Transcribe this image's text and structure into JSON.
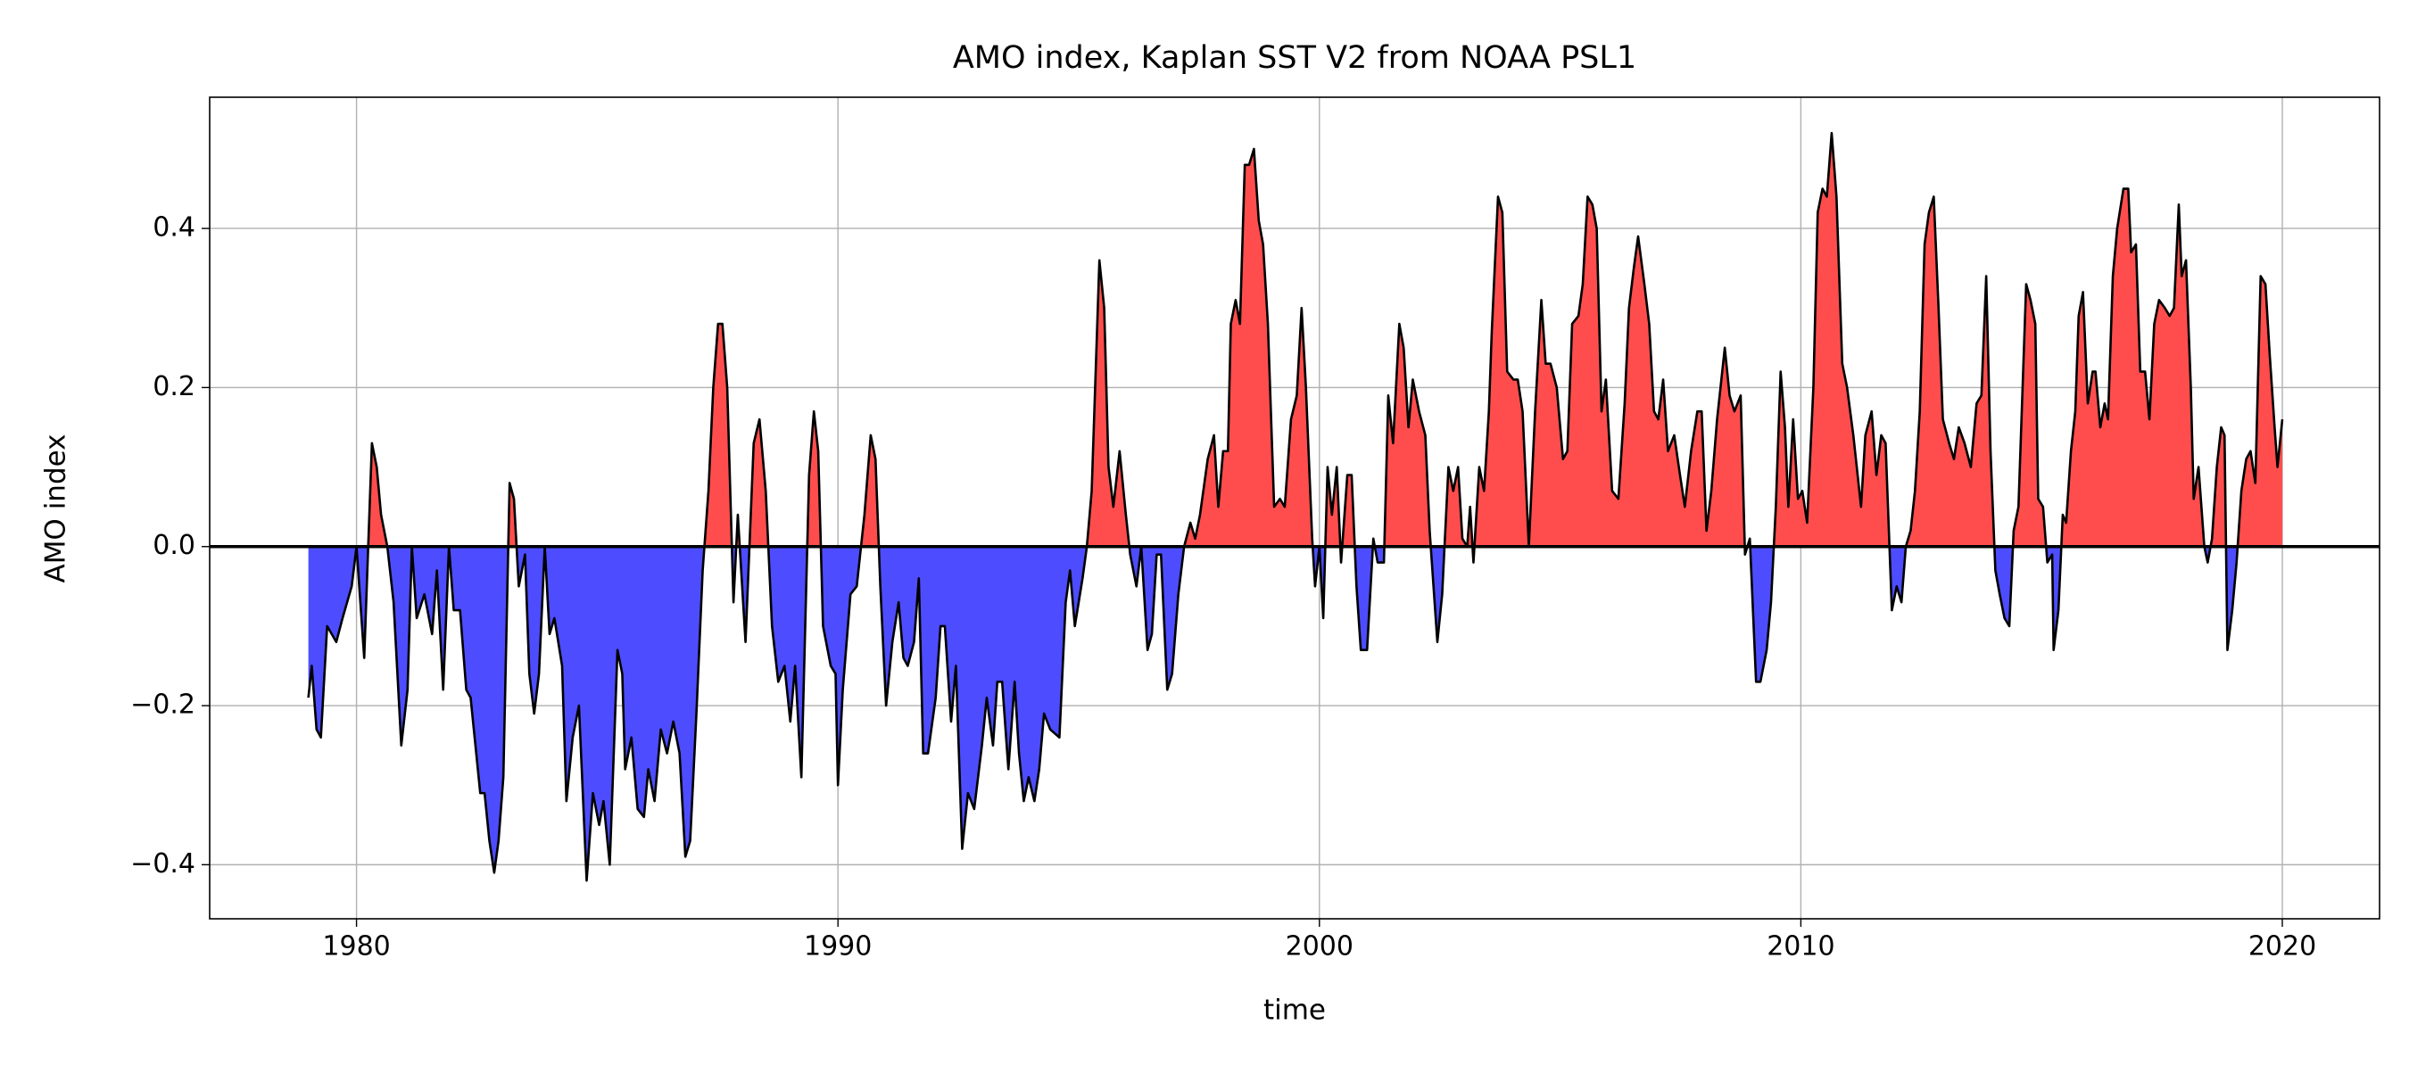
{
  "chart_data": {
    "type": "area",
    "title": "AMO index, Kaplan SST V2 from NOAA PSL1",
    "x_label": "time",
    "y_label": "AMO index",
    "color": "#000000",
    "fill_above_color": "#ff4d4d",
    "fill_below_color": "#4d4dff",
    "baseline": 0,
    "baseline_color": "#000000",
    "grid": true,
    "xlim": [
      1976.95,
      2022.02
    ],
    "ylim": [
      -0.468,
      0.565
    ],
    "xticks": [
      1980,
      1990,
      2000,
      2010,
      2020
    ],
    "yticks": [
      {
        "value": -0.4,
        "label": "−0.4"
      },
      {
        "value": -0.2,
        "label": "−0.2"
      },
      {
        "value": 0,
        "label": "0.0"
      },
      0.2,
      0.4
    ],
    "x": [
      1979.0,
      1979.07,
      1979.17,
      1979.26,
      1979.39,
      1979.58,
      1979.71,
      1979.9,
      1980.0,
      1980.16,
      1980.32,
      1980.42,
      1980.51,
      1980.64,
      1980.77,
      1980.93,
      1981.06,
      1981.15,
      1981.25,
      1981.41,
      1981.57,
      1981.67,
      1981.8,
      1981.92,
      1982.02,
      1982.15,
      1982.28,
      1982.37,
      1982.57,
      1982.66,
      1982.76,
      1982.86,
      1982.95,
      1983.05,
      1983.18,
      1983.27,
      1983.37,
      1983.5,
      1983.59,
      1983.69,
      1983.79,
      1983.91,
      1984.01,
      1984.11,
      1984.27,
      1984.36,
      1984.49,
      1984.62,
      1984.78,
      1984.91,
      1985.04,
      1985.13,
      1985.26,
      1985.42,
      1985.52,
      1985.58,
      1985.71,
      1985.84,
      1985.97,
      1986.06,
      1986.19,
      1986.32,
      1986.45,
      1986.58,
      1986.71,
      1986.83,
      1986.93,
      1987.06,
      1987.19,
      1987.31,
      1987.41,
      1987.51,
      1987.6,
      1987.7,
      1987.83,
      1987.92,
      1988.08,
      1988.25,
      1988.37,
      1988.5,
      1988.63,
      1988.76,
      1988.89,
      1989.01,
      1989.11,
      1989.24,
      1989.4,
      1989.5,
      1989.59,
      1989.69,
      1989.85,
      1989.95,
      1990.0,
      1990.1,
      1990.26,
      1990.39,
      1990.55,
      1990.68,
      1990.78,
      1990.88,
      1991.0,
      1991.13,
      1991.26,
      1991.36,
      1991.45,
      1991.58,
      1991.68,
      1991.77,
      1991.87,
      1992.03,
      1992.13,
      1992.22,
      1992.35,
      1992.45,
      1992.58,
      1992.7,
      1992.83,
      1992.99,
      1993.09,
      1993.22,
      1993.31,
      1993.41,
      1993.54,
      1993.67,
      1993.76,
      1993.86,
      1993.96,
      1994.08,
      1994.18,
      1994.28,
      1994.41,
      1994.6,
      1994.73,
      1994.82,
      1994.92,
      1995.08,
      1995.17,
      1995.27,
      1995.43,
      1995.53,
      1995.62,
      1995.72,
      1995.85,
      1995.98,
      1996.07,
      1996.2,
      1996.3,
      1996.43,
      1996.52,
      1996.62,
      1996.71,
      1996.84,
      1996.94,
      1997.07,
      1997.19,
      1997.32,
      1997.42,
      1997.52,
      1997.68,
      1997.81,
      1997.9,
      1998.0,
      1998.1,
      1998.16,
      1998.26,
      1998.35,
      1998.45,
      1998.54,
      1998.64,
      1998.74,
      1998.83,
      1998.93,
      1999.06,
      1999.18,
      1999.28,
      1999.41,
      1999.53,
      1999.63,
      1999.72,
      1999.85,
      1999.91,
      2000.0,
      2000.08,
      2000.17,
      2000.26,
      2000.36,
      2000.45,
      2000.58,
      2000.67,
      2000.77,
      2000.86,
      2000.99,
      2001.12,
      2001.21,
      2001.34,
      2001.43,
      2001.53,
      2001.66,
      2001.75,
      2001.85,
      2001.94,
      2002.07,
      2002.2,
      2002.29,
      2002.45,
      2002.55,
      2002.68,
      2002.78,
      2002.88,
      2002.97,
      2003.07,
      2003.13,
      2003.2,
      2003.32,
      2003.42,
      2003.52,
      2003.58,
      2003.71,
      2003.8,
      2003.9,
      2004.03,
      2004.12,
      2004.22,
      2004.35,
      2004.48,
      2004.61,
      2004.7,
      2004.8,
      2004.93,
      2005.06,
      2005.15,
      2005.25,
      2005.38,
      2005.47,
      2005.57,
      2005.67,
      2005.76,
      2005.86,
      2005.95,
      2006.08,
      2006.21,
      2006.34,
      2006.43,
      2006.53,
      2006.62,
      2006.75,
      2006.85,
      2006.95,
      2007.04,
      2007.14,
      2007.24,
      2007.37,
      2007.49,
      2007.59,
      2007.72,
      2007.85,
      2007.94,
      2008.04,
      2008.14,
      2008.26,
      2008.42,
      2008.52,
      2008.62,
      2008.75,
      2008.84,
      2008.94,
      2009.07,
      2009.16,
      2009.29,
      2009.38,
      2009.48,
      2009.58,
      2009.67,
      2009.74,
      2009.84,
      2009.94,
      2010.03,
      2010.13,
      2010.26,
      2010.35,
      2010.45,
      2010.54,
      2010.64,
      2010.74,
      2010.86,
      2010.96,
      2011.09,
      2011.25,
      2011.34,
      2011.47,
      2011.57,
      2011.67,
      2011.76,
      2011.89,
      2011.99,
      2012.09,
      2012.18,
      2012.28,
      2012.37,
      2012.47,
      2012.57,
      2012.66,
      2012.76,
      2012.86,
      2012.95,
      2013.08,
      2013.18,
      2013.28,
      2013.4,
      2013.53,
      2013.65,
      2013.75,
      2013.85,
      2013.94,
      2014.04,
      2014.13,
      2014.23,
      2014.33,
      2014.42,
      2014.52,
      2014.68,
      2014.77,
      2014.87,
      2014.93,
      2015.03,
      2015.12,
      2015.22,
      2015.25,
      2015.35,
      2015.44,
      2015.51,
      2015.61,
      2015.7,
      2015.77,
      2015.86,
      2015.96,
      2016.06,
      2016.12,
      2016.22,
      2016.31,
      2016.38,
      2016.48,
      2016.57,
      2016.7,
      2016.8,
      2016.86,
      2016.96,
      2017.05,
      2017.15,
      2017.24,
      2017.34,
      2017.44,
      2017.56,
      2017.66,
      2017.75,
      2017.85,
      2017.91,
      2018.0,
      2018.1,
      2018.16,
      2018.26,
      2018.38,
      2018.45,
      2018.54,
      2018.64,
      2018.73,
      2018.8,
      2018.86,
      2018.96,
      2019.05,
      2019.15,
      2019.25,
      2019.34,
      2019.44,
      2019.55,
      2019.65,
      2019.74,
      2019.84,
      2019.9,
      2020.0
    ],
    "values": [
      -0.19,
      -0.15,
      -0.23,
      -0.24,
      -0.1,
      -0.12,
      -0.09,
      -0.05,
      0,
      -0.14,
      0.13,
      0.1,
      0.04,
      0,
      -0.07,
      -0.25,
      -0.18,
      0,
      -0.09,
      -0.06,
      -0.11,
      -0.03,
      -0.18,
      0,
      -0.08,
      -0.08,
      -0.18,
      -0.19,
      -0.31,
      -0.31,
      -0.37,
      -0.41,
      -0.37,
      -0.29,
      0.08,
      0.06,
      -0.05,
      -0.01,
      -0.16,
      -0.21,
      -0.16,
      0,
      -0.11,
      -0.09,
      -0.15,
      -0.32,
      -0.24,
      -0.2,
      -0.42,
      -0.31,
      -0.35,
      -0.32,
      -0.4,
      -0.13,
      -0.16,
      -0.28,
      -0.24,
      -0.33,
      -0.34,
      -0.28,
      -0.32,
      -0.23,
      -0.26,
      -0.22,
      -0.26,
      -0.39,
      -0.37,
      -0.21,
      -0.03,
      0.07,
      0.2,
      0.28,
      0.28,
      0.2,
      -0.07,
      0.04,
      -0.12,
      0.13,
      0.16,
      0.07,
      -0.1,
      -0.17,
      -0.15,
      -0.22,
      -0.15,
      -0.29,
      0.09,
      0.17,
      0.12,
      -0.1,
      -0.15,
      -0.16,
      -0.3,
      -0.18,
      -0.06,
      -0.05,
      0.04,
      0.14,
      0.11,
      -0.05,
      -0.2,
      -0.12,
      -0.07,
      -0.14,
      -0.15,
      -0.12,
      -0.04,
      -0.26,
      -0.26,
      -0.19,
      -0.1,
      -0.1,
      -0.22,
      -0.15,
      -0.38,
      -0.31,
      -0.33,
      -0.25,
      -0.19,
      -0.25,
      -0.17,
      -0.17,
      -0.28,
      -0.17,
      -0.26,
      -0.32,
      -0.29,
      -0.32,
      -0.28,
      -0.21,
      -0.23,
      -0.24,
      -0.07,
      -0.03,
      -0.1,
      -0.04,
      0,
      0.07,
      0.36,
      0.3,
      0.1,
      0.05,
      0.12,
      0.04,
      -0.01,
      -0.05,
      0,
      -0.13,
      -0.11,
      -0.01,
      -0.01,
      -0.18,
      -0.16,
      -0.06,
      0,
      0.03,
      0.01,
      0.04,
      0.11,
      0.14,
      0.05,
      0.12,
      0.12,
      0.28,
      0.31,
      0.28,
      0.48,
      0.48,
      0.5,
      0.41,
      0.38,
      0.28,
      0.05,
      0.06,
      0.05,
      0.16,
      0.19,
      0.3,
      0.2,
      0.01,
      -0.05,
      0,
      -0.09,
      0.1,
      0.04,
      0.1,
      -0.02,
      0.09,
      0.09,
      -0.05,
      -0.13,
      -0.13,
      0.01,
      -0.02,
      -0.02,
      0.19,
      0.13,
      0.28,
      0.25,
      0.15,
      0.21,
      0.17,
      0.14,
      0.02,
      -0.12,
      -0.06,
      0.1,
      0.07,
      0.1,
      0.01,
      0,
      0.05,
      -0.02,
      0.1,
      0.07,
      0.17,
      0.27,
      0.44,
      0.42,
      0.22,
      0.21,
      0.21,
      0.17,
      0,
      0.17,
      0.31,
      0.23,
      0.23,
      0.2,
      0.11,
      0.12,
      0.28,
      0.29,
      0.33,
      0.44,
      0.43,
      0.4,
      0.17,
      0.21,
      0.07,
      0.06,
      0.18,
      0.3,
      0.35,
      0.39,
      0.33,
      0.28,
      0.17,
      0.16,
      0.21,
      0.12,
      0.14,
      0.09,
      0.05,
      0.12,
      0.17,
      0.17,
      0.02,
      0.07,
      0.16,
      0.25,
      0.19,
      0.17,
      0.19,
      -0.01,
      0.01,
      -0.17,
      -0.17,
      -0.13,
      -0.07,
      0.05,
      0.22,
      0.15,
      0.05,
      0.16,
      0.06,
      0.07,
      0.03,
      0.2,
      0.42,
      0.45,
      0.44,
      0.52,
      0.44,
      0.23,
      0.2,
      0.14,
      0.05,
      0.14,
      0.17,
      0.09,
      0.14,
      0.13,
      -0.08,
      -0.05,
      -0.07,
      0,
      0.02,
      0.07,
      0.17,
      0.38,
      0.42,
      0.44,
      0.3,
      0.16,
      0.13,
      0.11,
      0.15,
      0.13,
      0.1,
      0.18,
      0.19,
      0.34,
      0.12,
      -0.03,
      -0.06,
      -0.09,
      -0.1,
      0.02,
      0.05,
      0.33,
      0.31,
      0.28,
      0.06,
      0.05,
      -0.02,
      -0.01,
      -0.13,
      -0.08,
      0.04,
      0.03,
      0.12,
      0.17,
      0.29,
      0.32,
      0.18,
      0.22,
      0.22,
      0.15,
      0.18,
      0.16,
      0.34,
      0.4,
      0.45,
      0.45,
      0.37,
      0.38,
      0.22,
      0.22,
      0.16,
      0.28,
      0.31,
      0.3,
      0.29,
      0.3,
      0.43,
      0.34,
      0.36,
      0.2,
      0.06,
      0.1,
      0,
      -0.02,
      0.01,
      0.1,
      0.15,
      0.14,
      -0.13,
      -0.08,
      -0.02,
      0.07,
      0.11,
      0.12,
      0.08,
      0.34,
      0.33,
      0.24,
      0.15,
      0.1,
      0.16
    ]
  }
}
